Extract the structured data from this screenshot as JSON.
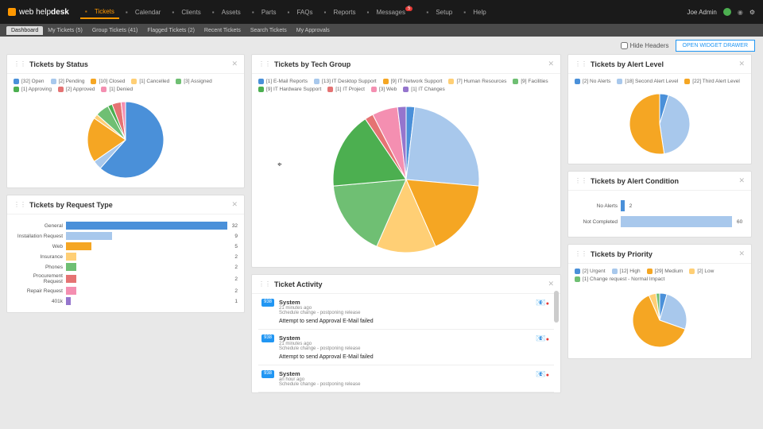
{
  "brand": {
    "name_light": "web help",
    "name_bold": "desk"
  },
  "nav": [
    {
      "id": "tickets",
      "label": "Tickets",
      "active": true
    },
    {
      "id": "calendar",
      "label": "Calendar"
    },
    {
      "id": "clients",
      "label": "Clients"
    },
    {
      "id": "assets",
      "label": "Assets"
    },
    {
      "id": "parts",
      "label": "Parts"
    },
    {
      "id": "faqs",
      "label": "FAQs"
    },
    {
      "id": "reports",
      "label": "Reports"
    },
    {
      "id": "messages",
      "label": "Messages",
      "badge": "5"
    },
    {
      "id": "setup",
      "label": "Setup"
    },
    {
      "id": "help",
      "label": "Help"
    }
  ],
  "user": {
    "name": "Joe Admin"
  },
  "subnav": [
    {
      "label": "Dashboard",
      "active": true
    },
    {
      "label": "My Tickets (5)"
    },
    {
      "label": "Group Tickets (41)"
    },
    {
      "label": "Flagged Tickets (2)"
    },
    {
      "label": "Recent Tickets"
    },
    {
      "label": "Search Tickets"
    },
    {
      "label": "My Approvals"
    }
  ],
  "toolbar": {
    "hide_headers": "Hide Headers",
    "open_drawer": "OPEN WIDGET DRAWER"
  },
  "colors": {
    "blue": "#4a90d9",
    "orange": "#f5a623",
    "green": "#6fbf73",
    "red": "#e57373",
    "lightblue": "#a8c8ec",
    "pink": "#f48fb1",
    "purple": "#9575cd",
    "teal": "#4db6ac",
    "yellow": "#ffcf75",
    "dkgreen": "#4caf50"
  },
  "status": {
    "title": "Tickets by Status",
    "items": [
      {
        "label": "[32] Open",
        "color": "#4a90d9",
        "value": 32
      },
      {
        "label": "[2] Pending",
        "color": "#a8c8ec",
        "value": 2
      },
      {
        "label": "[10] Closed",
        "color": "#f5a623",
        "value": 10
      },
      {
        "label": "[1] Cancelled",
        "color": "#ffcf75",
        "value": 1
      },
      {
        "label": "[3] Assigned",
        "color": "#6fbf73",
        "value": 3
      },
      {
        "label": "[1] Approving",
        "color": "#4caf50",
        "value": 1
      },
      {
        "label": "[2] Approved",
        "color": "#e57373",
        "value": 2
      },
      {
        "label": "[1] Denied",
        "color": "#f48fb1",
        "value": 1
      }
    ],
    "pie_radius": 48
  },
  "techgroup": {
    "title": "Tickets by Tech Group",
    "items": [
      {
        "label": "[1] E-Mail Reports",
        "color": "#4a90d9",
        "value": 1
      },
      {
        "label": "[13] IT Desktop Support",
        "color": "#a8c8ec",
        "value": 13
      },
      {
        "label": "[9] IT Network Support",
        "color": "#f5a623",
        "value": 9
      },
      {
        "label": "[7] Human Resources",
        "color": "#ffcf75",
        "value": 7
      },
      {
        "label": "[9] Facilities",
        "color": "#6fbf73",
        "value": 9
      },
      {
        "label": "[9] IT Hardware Support",
        "color": "#4caf50",
        "value": 9
      },
      {
        "label": "[1] IT Project",
        "color": "#e57373",
        "value": 1
      },
      {
        "label": "[3] Web",
        "color": "#f48fb1",
        "value": 3
      },
      {
        "label": "[1] IT Changes",
        "color": "#9575cd",
        "value": 1
      }
    ],
    "pie_radius": 92
  },
  "reqtype": {
    "title": "Tickets by Request Type",
    "max": 32,
    "items": [
      {
        "label": "General",
        "value": 32,
        "color": "#4a90d9"
      },
      {
        "label": "Installation Request",
        "value": 9,
        "color": "#a8c8ec"
      },
      {
        "label": "Web",
        "value": 5,
        "color": "#f5a623"
      },
      {
        "label": "Insurance",
        "value": 2,
        "color": "#ffcf75"
      },
      {
        "label": "Phones",
        "value": 2,
        "color": "#6fbf73"
      },
      {
        "label": "Procurement Request",
        "value": 2,
        "color": "#e57373"
      },
      {
        "label": "Repair Request",
        "value": 2,
        "color": "#f48fb1"
      },
      {
        "label": "401k",
        "value": 1,
        "color": "#9575cd"
      }
    ]
  },
  "alertlevel": {
    "title": "Tickets by Alert Level",
    "items": [
      {
        "label": "[2] No Alerts",
        "color": "#4a90d9",
        "value": 2
      },
      {
        "label": "[18] Second Alert Level",
        "color": "#a8c8ec",
        "value": 18
      },
      {
        "label": "[22] Third Alert Level",
        "color": "#f5a623",
        "value": 22
      }
    ],
    "pie_radius": 38
  },
  "alertcond": {
    "title": "Tickets by Alert Condition",
    "max": 60,
    "items": [
      {
        "label": "No Alerts",
        "value": 2,
        "color": "#4a90d9"
      },
      {
        "label": "Not Completed",
        "value": 60,
        "color": "#a8c8ec"
      }
    ]
  },
  "activity": {
    "title": "Ticket Activity",
    "items": [
      {
        "badge": "938",
        "title": "System",
        "meta": "21 minutes ago",
        "desc": "Schedule change - postponing release",
        "msg": "Attempt to send Approval E-Mail failed"
      },
      {
        "badge": "938",
        "title": "System",
        "meta": "21 minutes ago",
        "desc": "Schedule change - postponing release",
        "msg": "Attempt to send Approval E-Mail failed"
      },
      {
        "badge": "938",
        "title": "System",
        "meta": "an hour ago",
        "desc": "Schedule change - postponing release",
        "msg": ""
      }
    ]
  },
  "priority": {
    "title": "Tickets by Priority",
    "items": [
      {
        "label": "[2] Urgent",
        "color": "#4a90d9",
        "value": 2
      },
      {
        "label": "[12] High",
        "color": "#a8c8ec",
        "value": 12
      },
      {
        "label": "[29] Medium",
        "color": "#f5a623",
        "value": 29
      },
      {
        "label": "[2] Low",
        "color": "#ffcf75",
        "value": 2
      },
      {
        "label": "[1] Change request - Normal Impact",
        "color": "#6fbf73",
        "value": 1
      }
    ],
    "pie_radius": 34
  }
}
